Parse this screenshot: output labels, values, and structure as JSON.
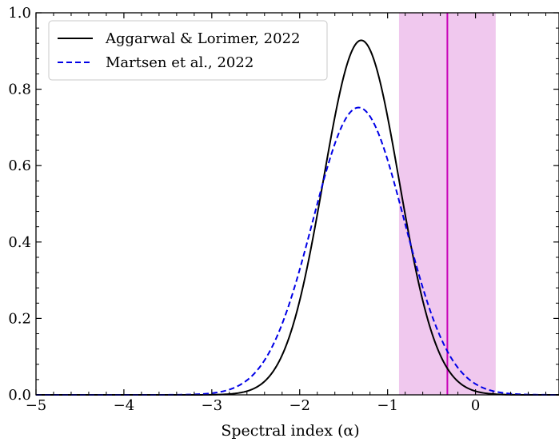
{
  "chart_data": {
    "type": "line",
    "title": "",
    "xlabel": "Spectral index (α)",
    "ylabel": "",
    "xlim": [
      -5,
      0.95
    ],
    "ylim": [
      0.0,
      1.0
    ],
    "x_ticks": [
      -5,
      -4,
      -3,
      -2,
      -1,
      0
    ],
    "x_tick_labels": [
      "−5",
      "−4",
      "−3",
      "−2",
      "−1",
      "0"
    ],
    "y_ticks": [
      0.0,
      0.2,
      0.4,
      0.6,
      0.8,
      1.0
    ],
    "y_tick_labels": [
      "0.0",
      "0.2",
      "0.4",
      "0.6",
      "0.8",
      "1.0"
    ],
    "grid": false,
    "legend_position": "top-left",
    "series": [
      {
        "name": "Aggarwal & Lorimer, 2022",
        "style": "solid",
        "color": "#000000",
        "distribution": {
          "peak_x": -1.3,
          "peak_y": 0.928,
          "sigma": 0.43
        },
        "x": [
          -5.0,
          -3.2,
          -3.0,
          -2.8,
          -2.6,
          -2.4,
          -2.2,
          -2.0,
          -1.8,
          -1.6,
          -1.4,
          -1.3,
          -1.2,
          -1.0,
          -0.8,
          -0.6,
          -0.4,
          -0.2,
          0.0,
          0.2
        ],
        "y": [
          0.0,
          0.0,
          0.002,
          0.01,
          0.035,
          0.093,
          0.2,
          0.352,
          0.53,
          0.724,
          0.906,
          0.928,
          0.906,
          0.724,
          0.47,
          0.26,
          0.12,
          0.045,
          0.012,
          0.002
        ]
      },
      {
        "name": "Martsen et al., 2022",
        "style": "dashed",
        "color": "#0000e6",
        "distribution": {
          "peak_x": -1.33,
          "peak_y": 0.752,
          "sigma": 0.52
        },
        "x": [
          -5.0,
          -3.4,
          -3.2,
          -3.0,
          -2.8,
          -2.6,
          -2.4,
          -2.2,
          -2.0,
          -1.8,
          -1.6,
          -1.4,
          -1.33,
          -1.2,
          -1.0,
          -0.8,
          -0.6,
          -0.4,
          -0.2,
          0.0,
          0.2,
          0.4
        ],
        "y": [
          0.0,
          0.003,
          0.008,
          0.018,
          0.04,
          0.08,
          0.15,
          0.252,
          0.38,
          0.52,
          0.65,
          0.74,
          0.752,
          0.73,
          0.64,
          0.5,
          0.345,
          0.205,
          0.105,
          0.045,
          0.016,
          0.004
        ]
      }
    ],
    "highlight_band": {
      "x_range": [
        -0.87,
        0.23
      ],
      "color": "#f0c8ee"
    },
    "vertical_line": {
      "x": -0.32,
      "color": "#c800b8"
    }
  }
}
